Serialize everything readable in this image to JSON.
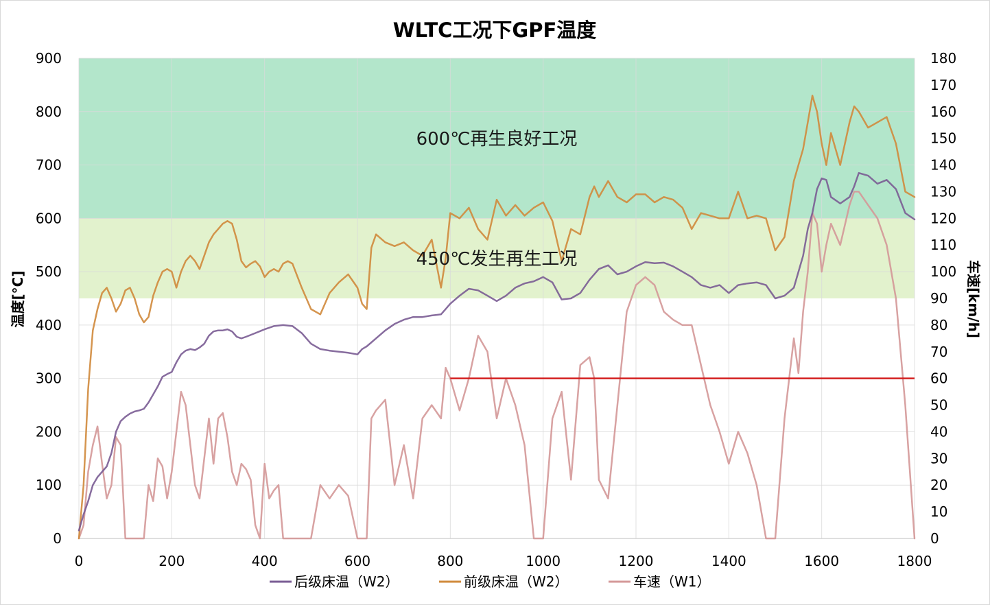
{
  "chart_data": {
    "type": "line",
    "title": "WLTC工况下GPF温度",
    "ylabel": "温度[°C]",
    "y2label": "车速[km/h]",
    "xlim": [
      0,
      1800
    ],
    "ylim": [
      0,
      900
    ],
    "y2lim": [
      0,
      180
    ],
    "xticks": [
      "0",
      "200",
      "400",
      "600",
      "800",
      "1000",
      "1200",
      "1400",
      "1600",
      "1800"
    ],
    "yticks": [
      "0",
      "100",
      "200",
      "300",
      "400",
      "500",
      "600",
      "700",
      "800",
      "900"
    ],
    "y2ticks": [
      "0",
      "10",
      "20",
      "30",
      "40",
      "50",
      "60",
      "70",
      "80",
      "90",
      "100",
      "110",
      "120",
      "130",
      "140",
      "150",
      "160",
      "170",
      "180"
    ],
    "grid": true,
    "legend_position": "bottom",
    "bands": [
      {
        "label": "600℃再生良好工况",
        "from": 600,
        "to": 900,
        "color": "#b3e6cb"
      },
      {
        "label": "450℃发生再生工况",
        "from": 450,
        "to": 600,
        "color": "#e2f2cd"
      }
    ],
    "reference_line": {
      "y": 300,
      "x_from": 800,
      "x_to": 1800,
      "color": "#d42020"
    },
    "series": [
      {
        "name": "后级床温（W2）",
        "color": "#7a5c94",
        "axis": "left",
        "x": [
          0,
          10,
          20,
          30,
          40,
          50,
          60,
          70,
          80,
          90,
          100,
          110,
          120,
          130,
          140,
          150,
          160,
          170,
          180,
          190,
          200,
          210,
          220,
          230,
          240,
          250,
          260,
          270,
          280,
          290,
          300,
          310,
          320,
          330,
          340,
          350,
          360,
          380,
          400,
          420,
          440,
          460,
          480,
          500,
          520,
          540,
          560,
          580,
          600,
          610,
          620,
          640,
          660,
          680,
          700,
          720,
          740,
          760,
          780,
          790,
          800,
          820,
          840,
          860,
          880,
          900,
          920,
          940,
          960,
          980,
          1000,
          1020,
          1040,
          1060,
          1080,
          1100,
          1120,
          1140,
          1160,
          1180,
          1200,
          1220,
          1240,
          1260,
          1280,
          1300,
          1320,
          1340,
          1360,
          1380,
          1400,
          1420,
          1440,
          1460,
          1480,
          1500,
          1520,
          1540,
          1560,
          1570,
          1580,
          1590,
          1600,
          1610,
          1620,
          1640,
          1660,
          1670,
          1680,
          1700,
          1720,
          1740,
          1760,
          1780,
          1800
        ],
        "values": [
          15,
          45,
          70,
          100,
          115,
          125,
          135,
          160,
          200,
          220,
          228,
          234,
          238,
          240,
          243,
          255,
          270,
          285,
          303,
          308,
          312,
          330,
          345,
          352,
          355,
          353,
          358,
          365,
          380,
          388,
          390,
          390,
          392,
          388,
          378,
          375,
          378,
          385,
          392,
          398,
          400,
          398,
          385,
          365,
          355,
          352,
          350,
          348,
          345,
          355,
          360,
          375,
          390,
          402,
          410,
          415,
          415,
          418,
          420,
          430,
          440,
          455,
          468,
          465,
          455,
          445,
          455,
          470,
          478,
          482,
          490,
          480,
          448,
          450,
          460,
          485,
          505,
          512,
          495,
          500,
          510,
          518,
          516,
          517,
          510,
          500,
          490,
          475,
          470,
          475,
          460,
          475,
          478,
          480,
          475,
          450,
          455,
          470,
          530,
          580,
          610,
          655,
          675,
          672,
          640,
          628,
          640,
          660,
          685,
          680,
          665,
          672,
          655,
          610,
          598
        ]
      },
      {
        "name": "前级床温（W2）",
        "color": "#d08a3c",
        "axis": "left",
        "x": [
          0,
          10,
          20,
          30,
          40,
          50,
          60,
          70,
          80,
          90,
          100,
          110,
          120,
          130,
          140,
          150,
          160,
          170,
          180,
          190,
          200,
          210,
          220,
          230,
          240,
          250,
          260,
          270,
          280,
          290,
          300,
          310,
          320,
          330,
          340,
          350,
          360,
          370,
          380,
          390,
          400,
          410,
          420,
          430,
          440,
          450,
          460,
          480,
          500,
          520,
          540,
          560,
          580,
          600,
          610,
          620,
          630,
          640,
          660,
          680,
          700,
          720,
          740,
          760,
          780,
          790,
          800,
          820,
          840,
          860,
          880,
          900,
          920,
          940,
          960,
          980,
          1000,
          1020,
          1040,
          1060,
          1080,
          1100,
          1110,
          1120,
          1140,
          1160,
          1180,
          1200,
          1220,
          1240,
          1260,
          1280,
          1300,
          1320,
          1340,
          1360,
          1380,
          1400,
          1420,
          1440,
          1460,
          1480,
          1500,
          1520,
          1540,
          1550,
          1560,
          1570,
          1580,
          1590,
          1600,
          1610,
          1620,
          1640,
          1660,
          1670,
          1680,
          1700,
          1720,
          1740,
          1760,
          1780,
          1800
        ],
        "values": [
          0,
          100,
          280,
          390,
          430,
          460,
          470,
          450,
          425,
          440,
          465,
          470,
          450,
          420,
          405,
          415,
          455,
          480,
          500,
          505,
          500,
          470,
          500,
          520,
          530,
          520,
          505,
          530,
          555,
          570,
          580,
          590,
          595,
          590,
          560,
          520,
          508,
          515,
          520,
          510,
          490,
          500,
          505,
          500,
          515,
          520,
          515,
          470,
          430,
          420,
          460,
          480,
          495,
          470,
          440,
          430,
          545,
          570,
          555,
          548,
          555,
          540,
          530,
          560,
          470,
          525,
          610,
          600,
          620,
          580,
          560,
          635,
          605,
          625,
          605,
          620,
          630,
          595,
          520,
          580,
          570,
          640,
          660,
          640,
          670,
          640,
          630,
          645,
          645,
          630,
          640,
          635,
          620,
          580,
          610,
          605,
          600,
          600,
          650,
          600,
          605,
          600,
          540,
          565,
          670,
          700,
          730,
          780,
          830,
          800,
          740,
          700,
          760,
          700,
          780,
          810,
          800,
          770,
          780,
          790,
          740,
          650,
          640
        ]
      },
      {
        "name": "车速（W1）",
        "color": "#d49898",
        "axis": "right",
        "x": [
          0,
          10,
          20,
          30,
          40,
          50,
          60,
          70,
          80,
          90,
          100,
          110,
          120,
          130,
          140,
          150,
          160,
          170,
          180,
          190,
          200,
          210,
          220,
          230,
          240,
          250,
          260,
          270,
          280,
          290,
          300,
          310,
          320,
          330,
          340,
          350,
          360,
          370,
          380,
          390,
          400,
          410,
          420,
          430,
          440,
          450,
          460,
          480,
          500,
          520,
          540,
          560,
          580,
          600,
          610,
          620,
          630,
          640,
          660,
          680,
          700,
          720,
          740,
          760,
          780,
          790,
          800,
          820,
          840,
          860,
          880,
          900,
          920,
          940,
          960,
          980,
          1000,
          1020,
          1040,
          1060,
          1080,
          1100,
          1110,
          1120,
          1140,
          1160,
          1180,
          1200,
          1220,
          1240,
          1260,
          1280,
          1300,
          1320,
          1340,
          1360,
          1380,
          1400,
          1420,
          1440,
          1460,
          1480,
          1500,
          1520,
          1540,
          1550,
          1560,
          1570,
          1580,
          1590,
          1600,
          1610,
          1620,
          1640,
          1660,
          1670,
          1680,
          1700,
          1720,
          1740,
          1760,
          1780,
          1800
        ],
        "values": [
          0,
          5,
          25,
          35,
          42,
          28,
          15,
          20,
          38,
          35,
          0,
          0,
          0,
          0,
          0,
          20,
          14,
          30,
          27,
          15,
          25,
          40,
          55,
          50,
          35,
          20,
          15,
          30,
          45,
          28,
          45,
          47,
          38,
          25,
          20,
          28,
          26,
          22,
          5,
          0,
          28,
          15,
          18,
          20,
          0,
          0,
          0,
          0,
          0,
          20,
          15,
          20,
          16,
          0,
          0,
          0,
          45,
          48,
          52,
          20,
          35,
          15,
          45,
          50,
          45,
          64,
          60,
          48,
          60,
          76,
          70,
          45,
          60,
          50,
          35,
          0,
          0,
          45,
          55,
          22,
          65,
          68,
          60,
          22,
          15,
          50,
          85,
          95,
          98,
          95,
          85,
          82,
          80,
          80,
          65,
          50,
          40,
          28,
          40,
          32,
          20,
          0,
          0,
          45,
          75,
          62,
          85,
          100,
          122,
          118,
          100,
          110,
          118,
          110,
          125,
          130,
          130,
          125,
          120,
          110,
          90,
          50,
          0
        ]
      }
    ]
  }
}
